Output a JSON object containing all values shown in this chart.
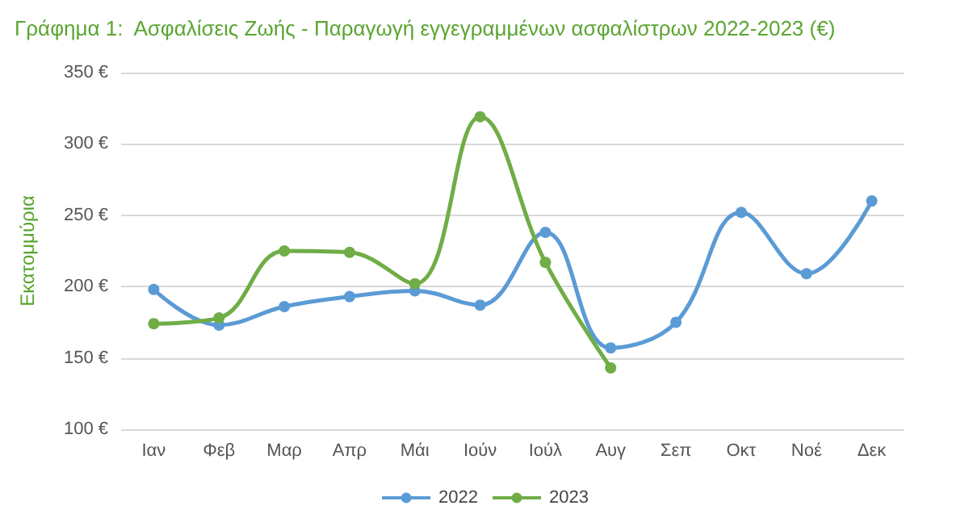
{
  "chart_data": {
    "type": "line",
    "title": "Γράφημα 1:  Ασφαλίσεις Ζωής - Παραγωγή εγγεγραμμένων ασφαλίστρων 2022-2023 (€)",
    "ylabel": "Εκατομμύρια",
    "categories": [
      "Ιαν",
      "Φεβ",
      "Μαρ",
      "Απρ",
      "Μάι",
      "Ιούν",
      "Ιούλ",
      "Αυγ",
      "Σεπ",
      "Οκτ",
      "Νοέ",
      "Δεκ"
    ],
    "series": [
      {
        "name": "2022",
        "color": "#5b9bd5",
        "values": [
          198,
          173,
          186,
          193,
          197,
          187,
          238,
          157,
          175,
          252,
          209,
          260
        ]
      },
      {
        "name": "2023",
        "color": "#70ad47",
        "values": [
          174,
          178,
          225,
          224,
          202,
          319,
          217,
          143,
          null,
          null,
          null,
          null
        ]
      }
    ],
    "ylim": [
      100,
      350
    ],
    "yticks": [
      {
        "value": 100,
        "label": "100 €"
      },
      {
        "value": 150,
        "label": "150 €"
      },
      {
        "value": 200,
        "label": "200 €"
      },
      {
        "value": 250,
        "label": "250 €"
      },
      {
        "value": 300,
        "label": "300 €"
      },
      {
        "value": 350,
        "label": "350 €"
      }
    ],
    "grid": "y",
    "legend": "bottom",
    "marker": "circle",
    "line_style": "solid"
  }
}
